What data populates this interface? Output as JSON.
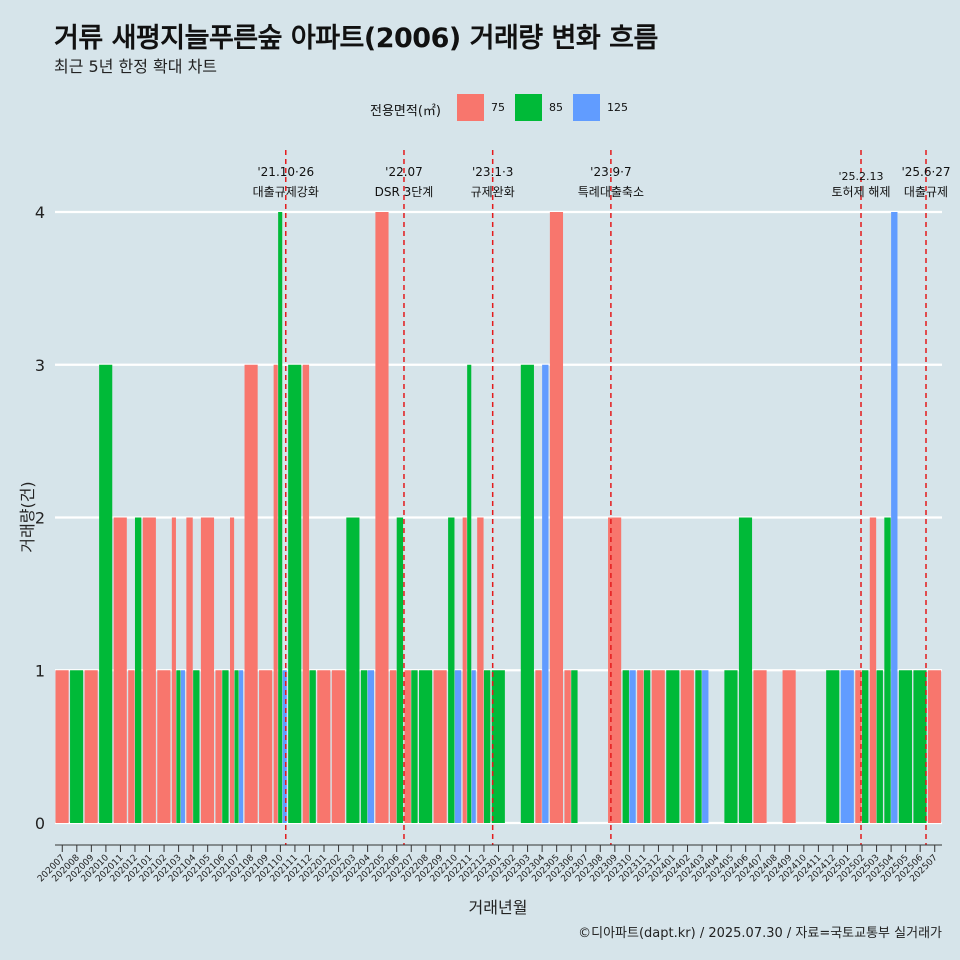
{
  "title": "거류 새평지늘푸른숲 아파트(2006) 거래량 변화 흐름",
  "subtitle": "최근 5년 한정 확대 차트",
  "caption": "©디아파트(dapt.kr) / 2025.07.30 / 자료=국토교통부 실거래가",
  "legend": {
    "title": "전용면적(㎡)",
    "items": [
      {
        "label": "75",
        "color": "#f8766d"
      },
      {
        "label": "85",
        "color": "#00ba38"
      },
      {
        "label": "125",
        "color": "#619cff"
      }
    ]
  },
  "chart_data": {
    "type": "bar",
    "xlabel": "거래년월",
    "ylabel": "거래량(건)",
    "ylim": [
      0,
      4
    ],
    "yticks": [
      0,
      1,
      2,
      3,
      4
    ],
    "grid": true,
    "legend_position": "top",
    "categories": [
      "202007",
      "202008",
      "202009",
      "202010",
      "202011",
      "202012",
      "202101",
      "202102",
      "202103",
      "202104",
      "202105",
      "202106",
      "202107",
      "202108",
      "202109",
      "202110",
      "202111",
      "202112",
      "202201",
      "202202",
      "202203",
      "202204",
      "202205",
      "202206",
      "202207",
      "202208",
      "202209",
      "202210",
      "202211",
      "202212",
      "202301",
      "202302",
      "202303",
      "202304",
      "202305",
      "202306",
      "202307",
      "202308",
      "202309",
      "202310",
      "202311",
      "202312",
      "202401",
      "202402",
      "202403",
      "202404",
      "202405",
      "202406",
      "202407",
      "202408",
      "202409",
      "202410",
      "202411",
      "202412",
      "202501",
      "202502",
      "202503",
      "202504",
      "202505",
      "202506",
      "202507"
    ],
    "series": [
      {
        "name": "75",
        "color": "#f8766d",
        "values": [
          1,
          0,
          1,
          0,
          2,
          1,
          2,
          1,
          2,
          2,
          2,
          1,
          2,
          3,
          1,
          3,
          0,
          3,
          1,
          1,
          0,
          0,
          4,
          1,
          1,
          0,
          1,
          0,
          2,
          2,
          0,
          0,
          0,
          1,
          4,
          1,
          0,
          0,
          2,
          0,
          1,
          1,
          0,
          1,
          0,
          0,
          0,
          0,
          1,
          0,
          1,
          0,
          0,
          0,
          0,
          1,
          2,
          0,
          0,
          0,
          1
        ]
      },
      {
        "name": "85",
        "color": "#00ba38",
        "values": [
          0,
          1,
          0,
          3,
          0,
          2,
          0,
          0,
          1,
          1,
          0,
          1,
          1,
          0,
          0,
          4,
          3,
          1,
          0,
          0,
          2,
          1,
          0,
          2,
          1,
          1,
          0,
          2,
          3,
          1,
          1,
          0,
          3,
          0,
          0,
          1,
          0,
          0,
          0,
          1,
          1,
          0,
          1,
          0,
          1,
          0,
          1,
          2,
          0,
          0,
          0,
          0,
          0,
          1,
          0,
          1,
          1,
          2,
          1,
          1,
          0
        ]
      },
      {
        "name": "125",
        "color": "#619cff",
        "values": [
          0,
          0,
          0,
          0,
          0,
          0,
          0,
          0,
          1,
          0,
          0,
          0,
          1,
          0,
          0,
          1,
          0,
          0,
          0,
          0,
          0,
          1,
          0,
          0,
          0,
          0,
          0,
          1,
          1,
          0,
          0,
          0,
          0,
          3,
          0,
          0,
          0,
          0,
          0,
          1,
          0,
          0,
          0,
          0,
          1,
          0,
          0,
          0,
          0,
          0,
          0,
          0,
          0,
          0,
          1,
          0,
          0,
          4,
          0,
          0,
          0
        ]
      }
    ],
    "annotations": [
      {
        "x": 202110.87,
        "date": "'21.10·26",
        "label": "대출규제강화",
        "row": 0
      },
      {
        "x": 202207.0,
        "date": "'22.07",
        "label": "DSR 3단계",
        "row": 0
      },
      {
        "x": 202301.1,
        "date": "'23.1·3",
        "label": "규제완화",
        "row": 0
      },
      {
        "x": 202309.23,
        "date": "'23.9·7",
        "label": "특례대출축소",
        "row": 0
      },
      {
        "x": 202502.43,
        "date": "'25.2.13",
        "label": "토허제 해제",
        "row": 1
      },
      {
        "x": 202506.9,
        "date": "'25.6·27",
        "label": "대출규제",
        "row": 0
      }
    ]
  }
}
